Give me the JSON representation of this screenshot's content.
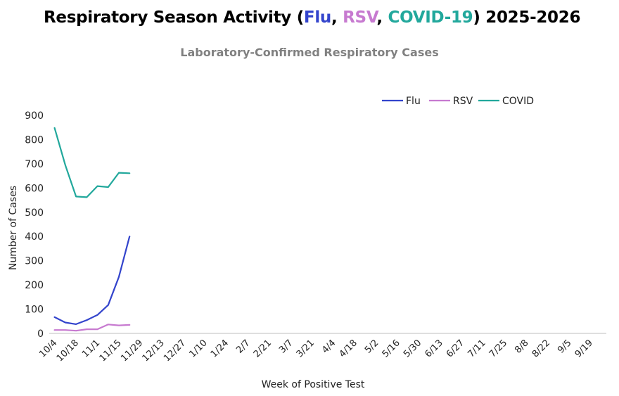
{
  "header": {
    "title_pre": "Respiratory Season Activity (",
    "title_flu": "Flu",
    "sep1": ", ",
    "title_rsv": "RSV",
    "sep2": ", ",
    "title_covid": "COVID-19",
    "title_post": ") 2025-2026"
  },
  "colors": {
    "flu": "#3344cc",
    "rsv": "#c77ad0",
    "covid": "#22a89c",
    "axis": "#bfbfbf"
  },
  "chart_data": {
    "type": "line",
    "title": "Laboratory-Confirmed Respiratory Cases",
    "xlabel": "Week of Positive Test",
    "ylabel": "Number of Cases",
    "ylim": [
      0,
      900
    ],
    "yticks": [
      0,
      100,
      200,
      300,
      400,
      500,
      600,
      700,
      800,
      900
    ],
    "legend_position": "top-right",
    "x_tick_labels": [
      "10/4",
      "10/18",
      "11/1",
      "11/15",
      "11/29",
      "12/13",
      "12/27",
      "1/10",
      "1/24",
      "2/7",
      "2/21",
      "3/7",
      "3/21",
      "4/4",
      "4/18",
      "5/2",
      "5/16",
      "5/30",
      "6/13",
      "6/27",
      "7/11",
      "7/25",
      "8/8",
      "8/22",
      "9/5",
      "9/19"
    ],
    "weeks_total": 52,
    "series": [
      {
        "name": "Flu",
        "color_key": "flu",
        "values": [
          67,
          45,
          38,
          55,
          76,
          117,
          233,
          400
        ]
      },
      {
        "name": "RSV",
        "color_key": "rsv",
        "values": [
          14,
          14,
          11,
          17,
          17,
          37,
          33,
          35
        ]
      },
      {
        "name": "COVID",
        "color_key": "covid",
        "values": [
          848,
          695,
          565,
          562,
          608,
          604,
          663,
          661
        ]
      }
    ]
  }
}
